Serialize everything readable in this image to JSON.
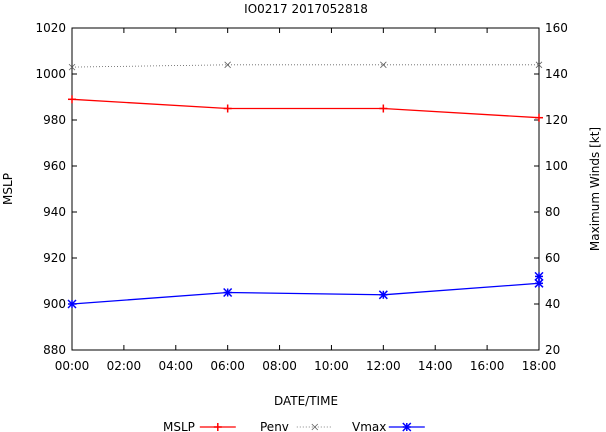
{
  "chart_data": {
    "type": "line",
    "title": "IO0217 2017052818",
    "xlabel": "DATE/TIME",
    "ylabel_left": "MSLP",
    "ylabel_right": "Maximum Winds [kt]",
    "x_ticks": [
      "00:00",
      "02:00",
      "04:00",
      "06:00",
      "08:00",
      "10:00",
      "12:00",
      "14:00",
      "16:00",
      "18:00"
    ],
    "xlim_hours": [
      0,
      18
    ],
    "y_left_ticks": [
      880,
      900,
      920,
      940,
      960,
      980,
      1000,
      1020
    ],
    "ylim_left": [
      880,
      1020
    ],
    "y_right_ticks": [
      20,
      40,
      60,
      80,
      100,
      120,
      140,
      160
    ],
    "ylim_right": [
      20,
      160
    ],
    "grid": false,
    "legend_position": "bottom",
    "series": [
      {
        "name": "MSLP",
        "axis": "left",
        "color": "#ff0000",
        "marker": "plus",
        "x": [
          0,
          6,
          12,
          18
        ],
        "values": [
          989,
          985,
          985,
          981
        ]
      },
      {
        "name": "Penv",
        "axis": "left",
        "color": "#606060",
        "marker": "cross",
        "dotted": true,
        "x": [
          0,
          6,
          12,
          18
        ],
        "values": [
          1003,
          1004,
          1004,
          1004
        ]
      },
      {
        "name": "Vmax",
        "axis": "right",
        "color": "#0000ff",
        "marker": "star",
        "x": [
          0,
          6,
          12,
          18,
          18
        ],
        "values": [
          40,
          45,
          44,
          49,
          52
        ]
      }
    ],
    "legend": [
      "MSLP",
      "Penv",
      "Vmax"
    ]
  }
}
